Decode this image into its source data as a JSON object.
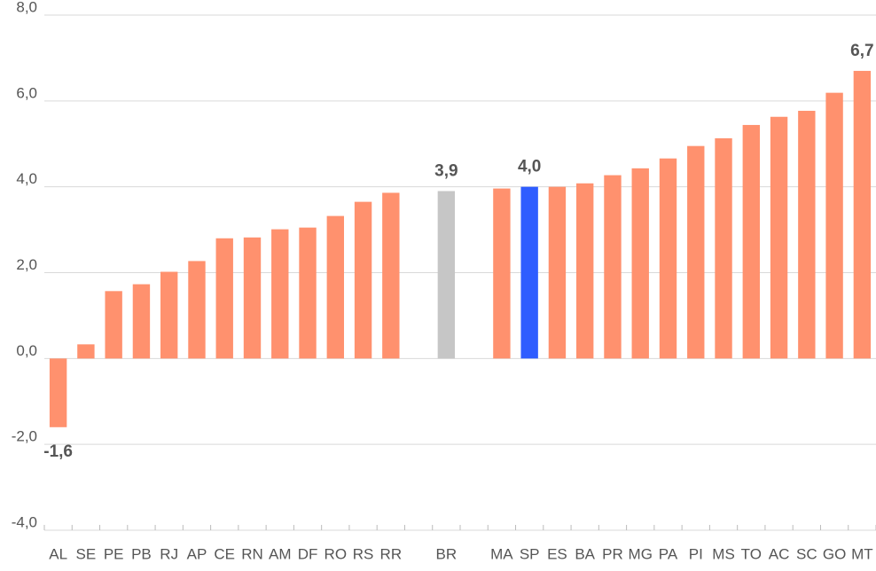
{
  "chart_data": {
    "type": "bar",
    "categories": [
      "AL",
      "SE",
      "PE",
      "PB",
      "RJ",
      "AP",
      "CE",
      "RN",
      "AM",
      "DF",
      "RO",
      "RS",
      "RR",
      null,
      "BR",
      null,
      "MA",
      "SP",
      "ES",
      "BA",
      "PR",
      "MG",
      "PA",
      "PI",
      "MS",
      "TO",
      "AC",
      "SC",
      "GO",
      "MT"
    ],
    "values": [
      -1.6,
      0.33,
      1.57,
      1.73,
      2.02,
      2.27,
      2.8,
      2.82,
      3.01,
      3.05,
      3.32,
      3.65,
      3.86,
      null,
      3.9,
      null,
      3.96,
      4.0,
      4.0,
      4.08,
      4.27,
      4.43,
      4.66,
      4.95,
      5.13,
      5.44,
      5.63,
      5.77,
      6.19,
      6.7
    ],
    "value_labels": [
      "-1,6",
      null,
      null,
      null,
      null,
      null,
      null,
      null,
      null,
      null,
      null,
      null,
      null,
      null,
      "3,9",
      null,
      null,
      "4,0",
      null,
      null,
      null,
      null,
      null,
      null,
      null,
      null,
      null,
      null,
      null,
      "6,7"
    ],
    "colors": [
      "#ff916e",
      "#ff916e",
      "#ff916e",
      "#ff916e",
      "#ff916e",
      "#ff916e",
      "#ff916e",
      "#ff916e",
      "#ff916e",
      "#ff916e",
      "#ff916e",
      "#ff916e",
      "#ff916e",
      null,
      "#c6c6c6",
      null,
      "#ff916e",
      "#2f5dff",
      "#ff916e",
      "#ff916e",
      "#ff916e",
      "#ff916e",
      "#ff916e",
      "#ff916e",
      "#ff916e",
      "#ff916e",
      "#ff916e",
      "#ff916e",
      "#ff916e",
      "#ff916e"
    ],
    "ylim": [
      -4,
      8
    ],
    "yticks": [
      {
        "value": -4,
        "label": "-4,0"
      },
      {
        "value": -2,
        "label": "-2,0"
      },
      {
        "value": 0,
        "label": "0,0"
      },
      {
        "value": 2,
        "label": "2,0"
      },
      {
        "value": 4,
        "label": "4,0"
      },
      {
        "value": 6,
        "label": "6,0"
      },
      {
        "value": 8,
        "label": "8,0"
      }
    ],
    "grid": true
  }
}
